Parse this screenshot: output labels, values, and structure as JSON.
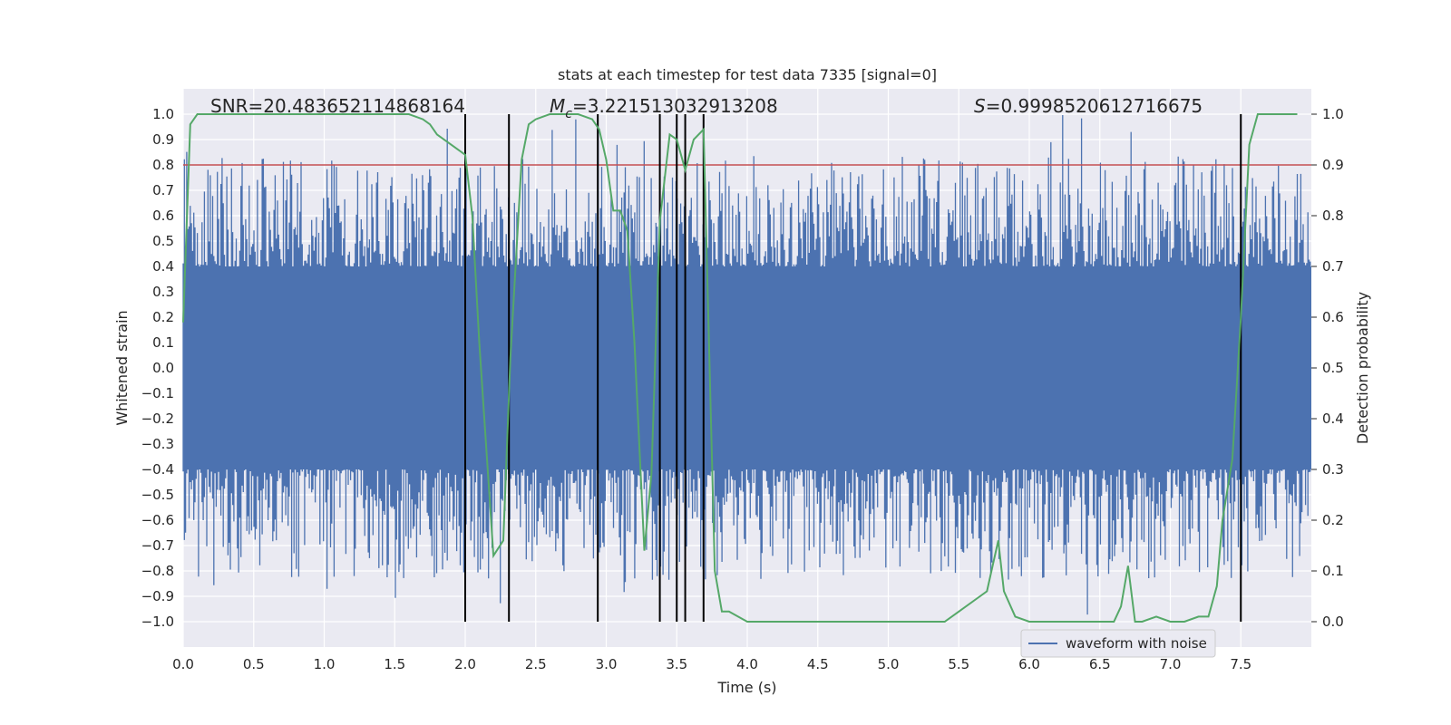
{
  "chart_data": {
    "type": "line",
    "title": "stats at each timestep for test data 7335 [signal=0]",
    "xlabel": "Time (s)",
    "ylabel_left": "Whitened strain",
    "ylabel_right": "Detection probability",
    "xlim": [
      0.0,
      8.0
    ],
    "ylim_left": [
      -1.1,
      1.1
    ],
    "ylim_right": [
      -0.05,
      1.05
    ],
    "x_ticks": [
      "0.0",
      "0.5",
      "1.0",
      "1.5",
      "2.0",
      "2.5",
      "3.0",
      "3.5",
      "4.0",
      "4.5",
      "5.0",
      "5.5",
      "6.0",
      "6.5",
      "7.0",
      "7.5"
    ],
    "y_left_ticks": [
      "1.0",
      "0.9",
      "0.8",
      "0.7",
      "0.6",
      "0.5",
      "0.4",
      "0.3",
      "0.2",
      "0.1",
      "0.0",
      "−0.1",
      "−0.2",
      "−0.3",
      "−0.4",
      "−0.5",
      "−0.6",
      "−0.7",
      "−0.8",
      "−0.9",
      "−1.0"
    ],
    "y_right_ticks": [
      "1.0",
      "0.9",
      "0.8",
      "0.7",
      "0.6",
      "0.5",
      "0.4",
      "0.3",
      "0.2",
      "0.1",
      "0.0"
    ],
    "grid": true,
    "legend_position": "lower-right",
    "annotations": {
      "snr_label": "SNR=20.483652114868164",
      "mc_symbol": "M",
      "mc_subscript": "c",
      "mc_value": "=3.221513032913208",
      "s_symbol": "S",
      "s_value": "=0.9998520612716675"
    },
    "colors": {
      "waveform": "#4c72b0",
      "probability": "#55a868",
      "threshold": "#c44e52",
      "vlines": "#000000",
      "background": "#eaeaf2",
      "grid": "#ffffff"
    },
    "threshold": 0.9,
    "vertical_lines": [
      2.0,
      2.31,
      2.94,
      3.38,
      3.5,
      3.56,
      3.69,
      7.5
    ],
    "series": [
      {
        "name": "waveform with noise",
        "role": "waveform",
        "envelope": {
          "core_upper": 0.4,
          "core_lower": -0.4,
          "peak_upper": 1.0,
          "peak_lower": -1.0
        }
      },
      {
        "role": "probability",
        "axis": "right",
        "x": [
          0.0,
          0.05,
          0.1,
          0.2,
          0.3,
          0.4,
          0.5,
          0.6,
          0.7,
          0.8,
          0.9,
          1.0,
          1.1,
          1.2,
          1.3,
          1.4,
          1.5,
          1.6,
          1.7,
          1.75,
          1.8,
          1.9,
          1.95,
          2.0,
          2.05,
          2.1,
          2.2,
          2.27,
          2.32,
          2.4,
          2.45,
          2.5,
          2.6,
          2.7,
          2.8,
          2.9,
          2.95,
          3.0,
          3.05,
          3.1,
          3.15,
          3.2,
          3.27,
          3.32,
          3.38,
          3.45,
          3.5,
          3.56,
          3.62,
          3.69,
          3.77,
          3.82,
          3.87,
          4.0,
          4.1,
          4.2,
          4.3,
          4.4,
          4.5,
          4.6,
          4.7,
          4.8,
          4.9,
          5.0,
          5.1,
          5.2,
          5.3,
          5.4,
          5.5,
          5.65,
          5.7,
          5.78,
          5.82,
          5.9,
          6.0,
          6.1,
          6.2,
          6.3,
          6.4,
          6.5,
          6.6,
          6.65,
          6.7,
          6.75,
          6.8,
          6.9,
          7.0,
          7.1,
          7.2,
          7.27,
          7.33,
          7.37,
          7.44,
          7.5,
          7.56,
          7.62,
          7.7,
          7.8,
          7.9
        ],
        "values": [
          0.59,
          0.98,
          1.0,
          1.0,
          1.0,
          1.0,
          1.0,
          1.0,
          1.0,
          1.0,
          1.0,
          1.0,
          1.0,
          1.0,
          1.0,
          1.0,
          1.0,
          1.0,
          0.99,
          0.98,
          0.96,
          0.94,
          0.93,
          0.92,
          0.8,
          0.55,
          0.13,
          0.16,
          0.52,
          0.91,
          0.98,
          0.99,
          1.0,
          1.0,
          1.0,
          0.99,
          0.97,
          0.91,
          0.81,
          0.81,
          0.77,
          0.55,
          0.14,
          0.29,
          0.79,
          0.96,
          0.95,
          0.89,
          0.95,
          0.97,
          0.1,
          0.02,
          0.02,
          0.0,
          0.0,
          0.0,
          0.0,
          0.0,
          0.0,
          0.0,
          0.0,
          0.0,
          0.0,
          0.0,
          0.0,
          0.0,
          0.0,
          0.0,
          0.02,
          0.05,
          0.06,
          0.16,
          0.06,
          0.01,
          0.0,
          0.0,
          0.0,
          0.0,
          0.0,
          0.0,
          0.0,
          0.03,
          0.11,
          0.0,
          0.0,
          0.01,
          0.0,
          0.0,
          0.01,
          0.01,
          0.07,
          0.2,
          0.32,
          0.6,
          0.94,
          1.0,
          1.0,
          1.0,
          1.0
        ]
      }
    ]
  }
}
